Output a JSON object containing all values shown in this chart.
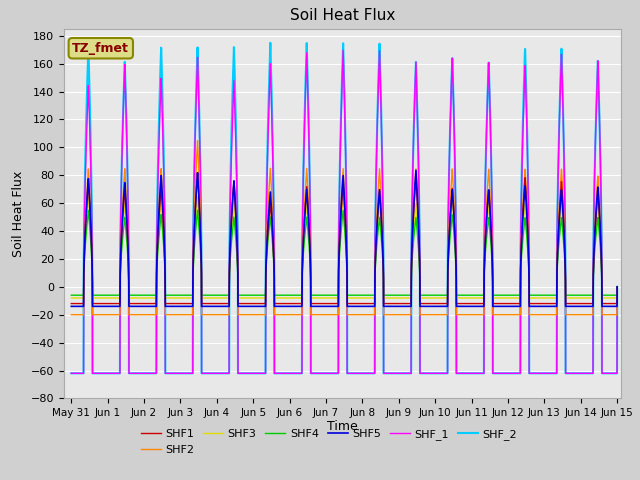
{
  "title": "Soil Heat Flux",
  "ylabel": "Soil Heat Flux",
  "xlabel": "Time",
  "ylim": [
    -80,
    185
  ],
  "yticks": [
    -80,
    -60,
    -40,
    -20,
    0,
    20,
    40,
    60,
    80,
    100,
    120,
    140,
    160,
    180
  ],
  "num_days": 15,
  "fig_width": 6.4,
  "fig_height": 4.8,
  "bg_color": "#d0d0d0",
  "plot_bg": "#e8e8e8",
  "series": [
    {
      "name": "SHF1",
      "color": "#cc0000",
      "peaks": [
        75,
        70,
        71,
        82,
        76,
        60,
        72,
        74,
        69,
        78,
        71,
        70,
        79,
        76,
        68
      ],
      "baseline": -12,
      "lw": 1.0,
      "zorder": 5
    },
    {
      "name": "SHF2",
      "color": "#ff8800",
      "peaks": [
        85,
        85,
        85,
        105,
        75,
        85,
        85,
        85,
        85,
        85,
        85,
        85,
        85,
        85,
        80
      ],
      "baseline": -20,
      "lw": 1.0,
      "zorder": 4
    },
    {
      "name": "SHF3",
      "color": "#dddd00",
      "peaks": [
        65,
        60,
        62,
        65,
        60,
        60,
        60,
        65,
        60,
        60,
        62,
        60,
        60,
        60,
        60
      ],
      "baseline": -8,
      "lw": 1.0,
      "zorder": 3
    },
    {
      "name": "SHF4",
      "color": "#00cc00",
      "peaks": [
        55,
        50,
        52,
        55,
        50,
        50,
        50,
        55,
        50,
        50,
        52,
        50,
        50,
        50,
        50
      ],
      "baseline": -6,
      "lw": 1.0,
      "zorder": 3
    },
    {
      "name": "SHF5",
      "color": "#0000dd",
      "peaks": [
        78,
        75,
        80,
        82,
        76,
        68,
        70,
        80,
        70,
        84,
        70,
        70,
        73,
        70,
        72
      ],
      "baseline": -14,
      "lw": 1.2,
      "zorder": 6
    },
    {
      "name": "SHF_1",
      "color": "#ff00ff",
      "peaks": [
        145,
        160,
        150,
        165,
        148,
        160,
        168,
        170,
        170,
        162,
        165,
        162,
        160,
        168,
        163
      ],
      "baseline": -62,
      "lw": 1.0,
      "zorder": 2
    },
    {
      "name": "SHF_2",
      "color": "#00ccff",
      "peaks": [
        172,
        162,
        172,
        172,
        172,
        175,
        175,
        175,
        175,
        162,
        165,
        162,
        172,
        172,
        163
      ],
      "baseline": -62,
      "lw": 1.5,
      "zorder": 1
    }
  ],
  "annotation_text": "TZ_fmet",
  "annotation_box_color": "#dddd88",
  "annotation_text_color": "#880000",
  "xtick_labels": [
    "May 31",
    "Jun 1",
    "Jun 2",
    "Jun 3",
    "Jun 4",
    "Jun 5",
    "Jun 6",
    "Jun 7",
    "Jun 8",
    "Jun 9",
    "Jun 10",
    "Jun 11",
    "Jun 12",
    "Jun 13",
    "Jun 14",
    "Jun 15"
  ],
  "legend_cols": 6
}
